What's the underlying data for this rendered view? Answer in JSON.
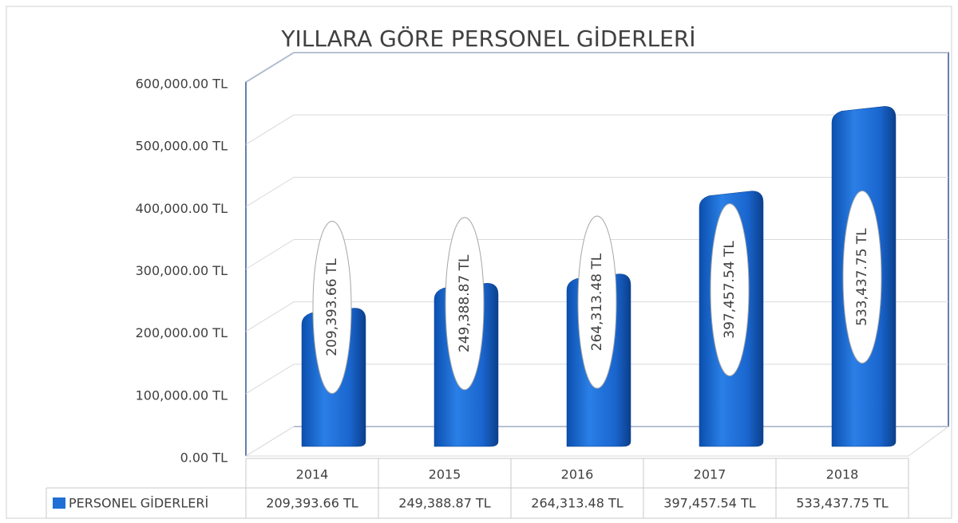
{
  "chart_data": {
    "type": "bar3d",
    "title": "YILLARA GÖRE PERSONEL GİDERLERİ",
    "categories": [
      "2014",
      "2015",
      "2016",
      "2017",
      "2018"
    ],
    "series": [
      {
        "name": "PERSONEL GİDERLERİ",
        "color": "#1f6fd6",
        "values": [
          209393.66,
          249388.87,
          264313.48,
          397457.54,
          533437.75
        ],
        "value_labels": [
          "209,393.66 TL",
          "249,388.87 TL",
          "264,313.48 TL",
          "397,457.54 TL",
          "533,437.75 TL"
        ]
      }
    ],
    "ylim": [
      0,
      600000
    ],
    "yticks": [
      {
        "value": 0,
        "label": "0.00 TL"
      },
      {
        "value": 100000,
        "label": "100,000.00 TL"
      },
      {
        "value": 200000,
        "label": "200,000.00 TL"
      },
      {
        "value": 300000,
        "label": "300,000.00 TL"
      },
      {
        "value": 400000,
        "label": "400,000.00 TL"
      },
      {
        "value": 500000,
        "label": "500,000.00 TL"
      },
      {
        "value": 600000,
        "label": "600,000.00 TL"
      }
    ],
    "grid": true
  }
}
